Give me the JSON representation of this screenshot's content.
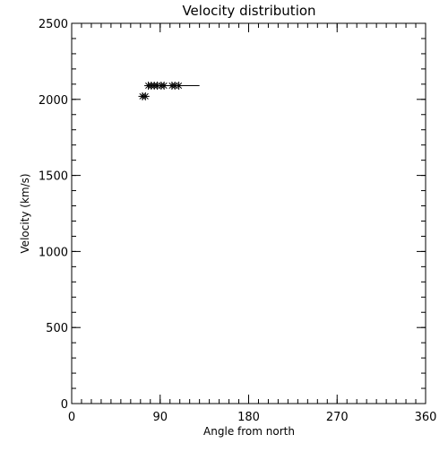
{
  "chart_data": {
    "type": "scatter",
    "title": "Velocity distribution",
    "xlabel": "Angle from north",
    "ylabel": "Velocity (km/s)",
    "xlim": [
      0,
      360
    ],
    "ylim": [
      0,
      2500
    ],
    "x_ticks": [
      0,
      90,
      180,
      270,
      360
    ],
    "y_ticks": [
      0,
      500,
      1000,
      1500,
      2000,
      2500
    ],
    "x_minor_step": 10,
    "y_minor_step": 100,
    "grid": false,
    "legend": "none",
    "marker": "asterisk",
    "color": "#000000",
    "points": [
      {
        "x": 72,
        "y": 2020
      },
      {
        "x": 75,
        "y": 2020
      },
      {
        "x": 78,
        "y": 2090
      },
      {
        "x": 81,
        "y": 2090
      },
      {
        "x": 84,
        "y": 2090
      },
      {
        "x": 87,
        "y": 2090
      },
      {
        "x": 91,
        "y": 2090
      },
      {
        "x": 94,
        "y": 2090
      },
      {
        "x": 102,
        "y": 2090
      },
      {
        "x": 105,
        "y": 2090
      },
      {
        "x": 109,
        "y": 2090
      }
    ],
    "segments": [
      {
        "x1": 78,
        "x2": 130,
        "y": 2090
      }
    ]
  }
}
